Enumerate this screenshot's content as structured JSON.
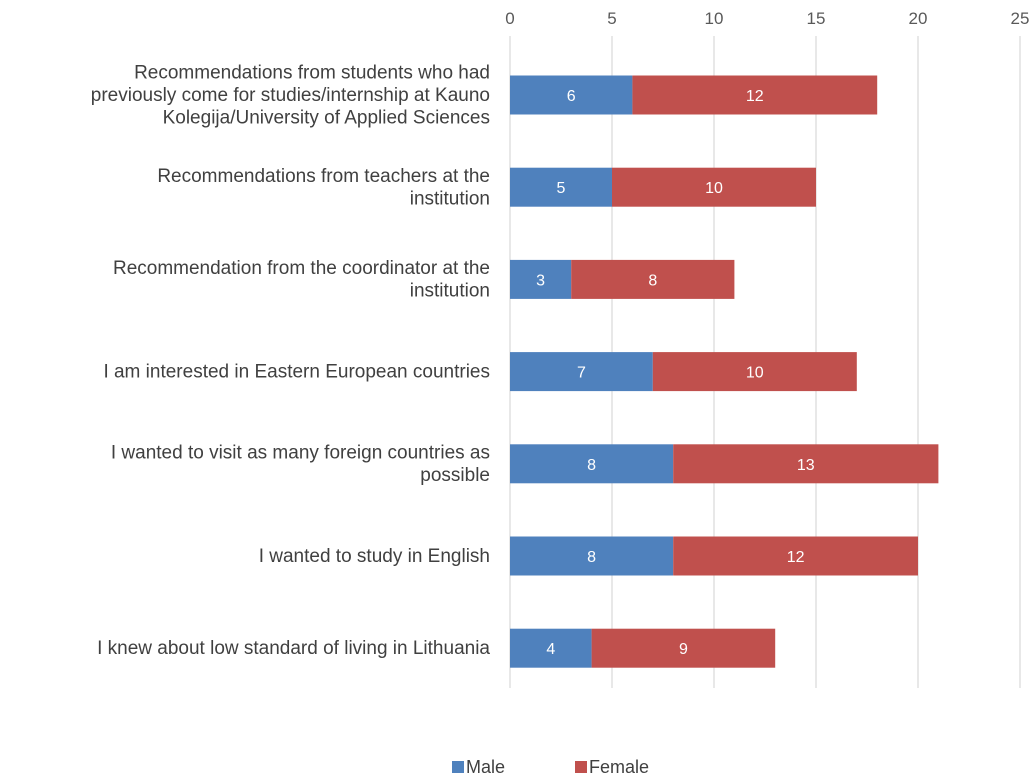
{
  "chart_data": {
    "type": "bar",
    "orientation": "horizontal",
    "stacked": true,
    "categories": [
      [
        "Recommendations from students who had",
        "previously come for studies/internship at Kauno",
        "Kolegija/University of Applied Sciences"
      ],
      [
        "Recommendations from teachers at the",
        "institution"
      ],
      [
        "Recommendation from the coordinator at the",
        "institution"
      ],
      [
        "I am interested in Eastern European countries"
      ],
      [
        "I wanted to visit as many foreign countries as",
        "possible"
      ],
      [
        "I wanted to study in English"
      ],
      [
        "I knew about low standard of living in Lithuania"
      ]
    ],
    "series": [
      {
        "name": "Male",
        "color": "#4f81bd",
        "values": [
          6,
          5,
          3,
          7,
          8,
          8,
          4
        ]
      },
      {
        "name": "Female",
        "color": "#c0504d",
        "values": [
          12,
          10,
          8,
          10,
          13,
          12,
          9
        ]
      }
    ],
    "xlim": [
      0,
      25
    ],
    "xticks": [
      "0",
      "5",
      "10",
      "15",
      "20",
      "25"
    ],
    "x_axis_position": "top",
    "grid": true,
    "legend": "bottom",
    "title": "",
    "xlabel": "",
    "ylabel": ""
  }
}
